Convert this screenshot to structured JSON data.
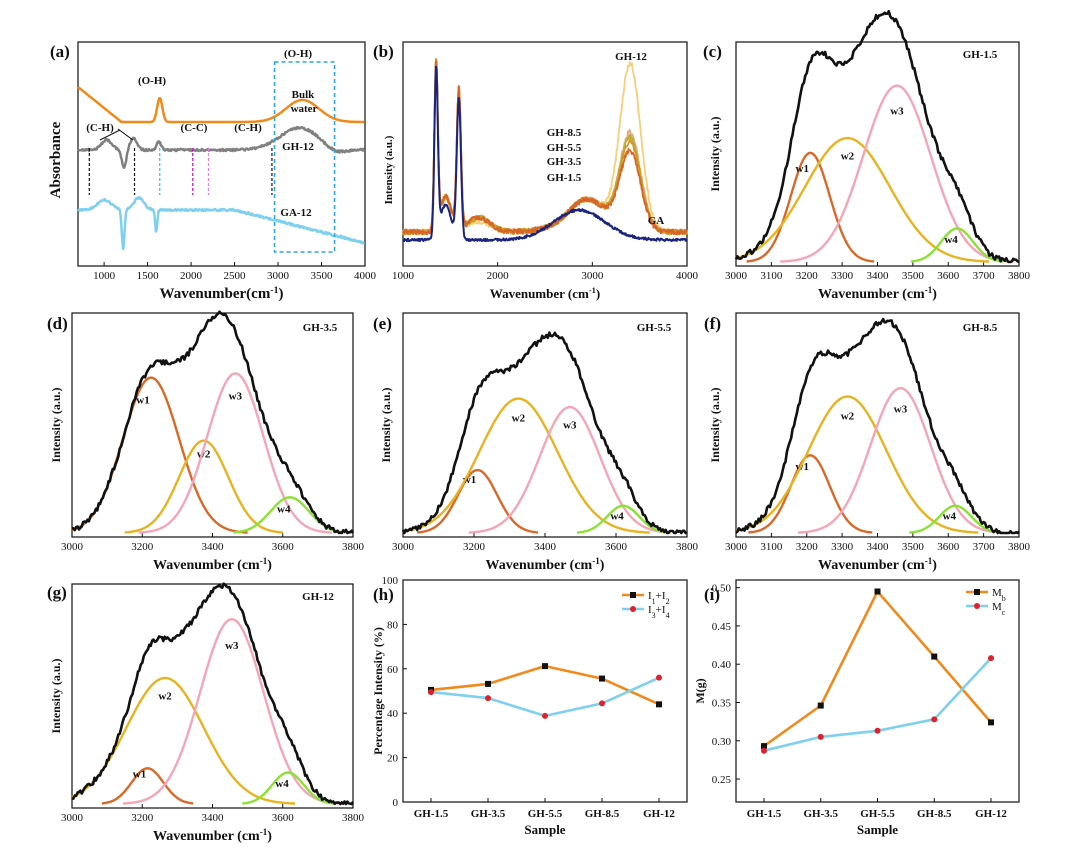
{
  "chart_data": [
    {
      "panel": "(a)",
      "type": "line",
      "xlabel": "Wavenumber(cm-1)",
      "ylabel": "Absorbance",
      "xlim": [
        700,
        4000
      ],
      "xticks": [
        "1000",
        "1500",
        "2000",
        "2500",
        "3000",
        "3500",
        "4000"
      ],
      "series": [
        {
          "name": "Bulk water",
          "color": "#F08A1C"
        },
        {
          "name": "GH-12",
          "color": "#808080"
        },
        {
          "name": "GA-12",
          "color": "#7FCFEF"
        }
      ],
      "annotations": [
        "(O-H)",
        "(O-H)",
        "(C-H)",
        "(C-C)",
        "(C-H)",
        "Bulk",
        "water",
        "GH-12",
        "GA-12"
      ]
    },
    {
      "panel": "(b)",
      "type": "line",
      "xlabel": "Wavenumber (cm-1)",
      "ylabel": "Intensity (a.u.)",
      "xlim": [
        1000,
        4000
      ],
      "xticks": [
        "1000",
        "2000",
        "3000",
        "4000"
      ],
      "series": [
        {
          "name": "GH-12",
          "color": "#F5CF7A"
        },
        {
          "name": "GH-8.5",
          "color": "#E8A782"
        },
        {
          "name": "GH-5.5",
          "color": "#B8B030"
        },
        {
          "name": "GH-3.5",
          "color": "#D29A1E"
        },
        {
          "name": "GH-1.5",
          "color": "#D9642A"
        },
        {
          "name": "GA",
          "color": "#1A237E"
        }
      ]
    },
    {
      "panel": "(c)",
      "type": "line",
      "title": "GH-1.5",
      "xlabel": "Wavenumber (cm-1)",
      "ylabel": "Intensity (a.u.)",
      "xlim": [
        3000,
        3800
      ],
      "xticks": [
        "3000",
        "3100",
        "3200",
        "3300",
        "3400",
        "3500",
        "3600",
        "3700",
        "3800"
      ],
      "peaks": [
        {
          "name": "w1",
          "center": 3210,
          "height": 0.52,
          "width": 55
        },
        {
          "name": "w2",
          "center": 3315,
          "height": 0.59,
          "width": 120
        },
        {
          "name": "w3",
          "center": 3455,
          "height": 0.84,
          "width": 95
        },
        {
          "name": "w4",
          "center": 3625,
          "height": 0.16,
          "width": 45
        }
      ]
    },
    {
      "panel": "(d)",
      "type": "line",
      "title": "GH-3.5",
      "xlabel": "Wavenumber (cm-1)",
      "ylabel": "Intensity (a.u.)",
      "xlim": [
        3000,
        3800
      ],
      "xticks": [
        "3000",
        "3200",
        "3400",
        "3600",
        "3800"
      ],
      "peaks": [
        {
          "name": "w1",
          "center": 3225,
          "height": 0.74,
          "width": 80
        },
        {
          "name": "w2",
          "center": 3375,
          "height": 0.44,
          "width": 70
        },
        {
          "name": "w3",
          "center": 3465,
          "height": 0.76,
          "width": 80
        },
        {
          "name": "w4",
          "center": 3620,
          "height": 0.17,
          "width": 55
        }
      ]
    },
    {
      "panel": "(e)",
      "type": "line",
      "title": "GH-5.5",
      "xlabel": "Wavenumber (cm-1)",
      "ylabel": "Intensity (a.u.)",
      "xlim": [
        3000,
        3800
      ],
      "xticks": [
        "3000",
        "3200",
        "3400",
        "3600",
        "3800"
      ],
      "peaks": [
        {
          "name": "w1",
          "center": 3210,
          "height": 0.3,
          "width": 55
        },
        {
          "name": "w2",
          "center": 3325,
          "height": 0.64,
          "width": 110
        },
        {
          "name": "w3",
          "center": 3470,
          "height": 0.6,
          "width": 85
        },
        {
          "name": "w4",
          "center": 3620,
          "height": 0.13,
          "width": 45
        }
      ]
    },
    {
      "panel": "(f)",
      "type": "line",
      "title": "GH-8.5",
      "xlabel": "Wavenumber (cm-1)",
      "ylabel": "Intensity (a.u.)",
      "xlim": [
        3000,
        3800
      ],
      "xticks": [
        "3000",
        "3100",
        "3200",
        "3300",
        "3400",
        "3500",
        "3600",
        "3700",
        "3800"
      ],
      "peaks": [
        {
          "name": "w1",
          "center": 3210,
          "height": 0.37,
          "width": 55
        },
        {
          "name": "w2",
          "center": 3315,
          "height": 0.65,
          "width": 110
        },
        {
          "name": "w3",
          "center": 3465,
          "height": 0.69,
          "width": 85
        },
        {
          "name": "w4",
          "center": 3620,
          "height": 0.13,
          "width": 45
        }
      ]
    },
    {
      "panel": "(g)",
      "type": "line",
      "title": "GH-12",
      "xlabel": "Wavenumber (cm-1)",
      "ylabel": "Intensity (a.u.)",
      "xlim": [
        3000,
        3800
      ],
      "xticks": [
        "3000",
        "3200",
        "3400",
        "3600",
        "3800"
      ],
      "peaks": [
        {
          "name": "w1",
          "center": 3215,
          "height": 0.17,
          "width": 45
        },
        {
          "name": "w2",
          "center": 3265,
          "height": 0.6,
          "width": 110
        },
        {
          "name": "w3",
          "center": 3455,
          "height": 0.88,
          "width": 90
        },
        {
          "name": "w4",
          "center": 3615,
          "height": 0.15,
          "width": 45
        }
      ]
    },
    {
      "panel": "(h)",
      "type": "line",
      "xlabel": "Sample",
      "ylabel": "Percentage Intensity (%)",
      "ylim": [
        0,
        100
      ],
      "yticks": [
        "0",
        "20",
        "40",
        "60",
        "80",
        "100"
      ],
      "categories": [
        "GH-1.5",
        "GH-3.5",
        "GH-5.5",
        "GH-8.5",
        "GH-12"
      ],
      "series": [
        {
          "name": "I1+I2",
          "color": "#F08A1C",
          "marker": "square",
          "values": [
            50.5,
            53.2,
            61.2,
            55.6,
            44.0
          ]
        },
        {
          "name": "I3+I4",
          "color": "#7FCFEF",
          "marker": "circle",
          "values": [
            49.5,
            46.8,
            38.8,
            44.4,
            56.0
          ]
        }
      ]
    },
    {
      "panel": "(i)",
      "type": "line",
      "xlabel": "Sample",
      "ylabel": "M(g)",
      "ylim": [
        0.22,
        0.51
      ],
      "yticks": [
        "0.25",
        "0.30",
        "0.35",
        "0.40",
        "0.45",
        "0.50"
      ],
      "categories": [
        "GH-1.5",
        "GH-3.5",
        "GH-5.5",
        "GH-8.5",
        "GH-12"
      ],
      "series": [
        {
          "name": "Mb",
          "color": "#F08A1C",
          "marker": "square",
          "values": [
            0.293,
            0.346,
            0.495,
            0.41,
            0.324
          ]
        },
        {
          "name": "Mc",
          "color": "#7FCFEF",
          "marker": "circle",
          "values": [
            0.287,
            0.305,
            0.313,
            0.328,
            0.408
          ]
        }
      ]
    }
  ]
}
